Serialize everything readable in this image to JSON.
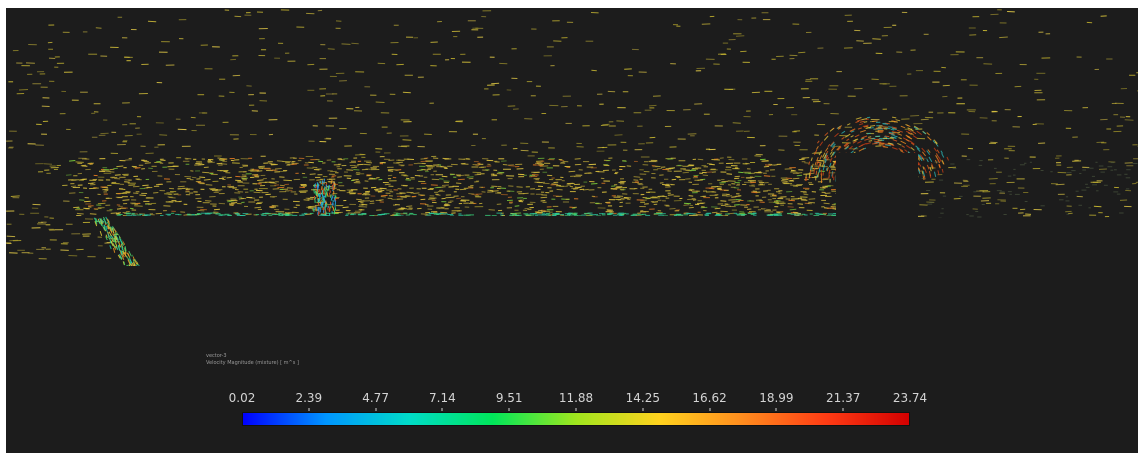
{
  "legend": {
    "title": "vector-3",
    "variable": "Velocity Magnitude (mixture)  [ m^s ]",
    "ticks": [
      "0.02",
      "2.39",
      "4.77",
      "7.14",
      "9.51",
      "11.88",
      "14.25",
      "16.62",
      "18.99",
      "21.37",
      "23.74"
    ],
    "colormap": [
      "#0000ff",
      "#0096ff",
      "#00dcc8",
      "#00e65a",
      "#a0e61e",
      "#ffd21e",
      "#ff8c1e",
      "#ff3c14",
      "#d20000"
    ]
  },
  "colors": {
    "background": "#1c1c1c",
    "body": "#1c1c1c"
  }
}
